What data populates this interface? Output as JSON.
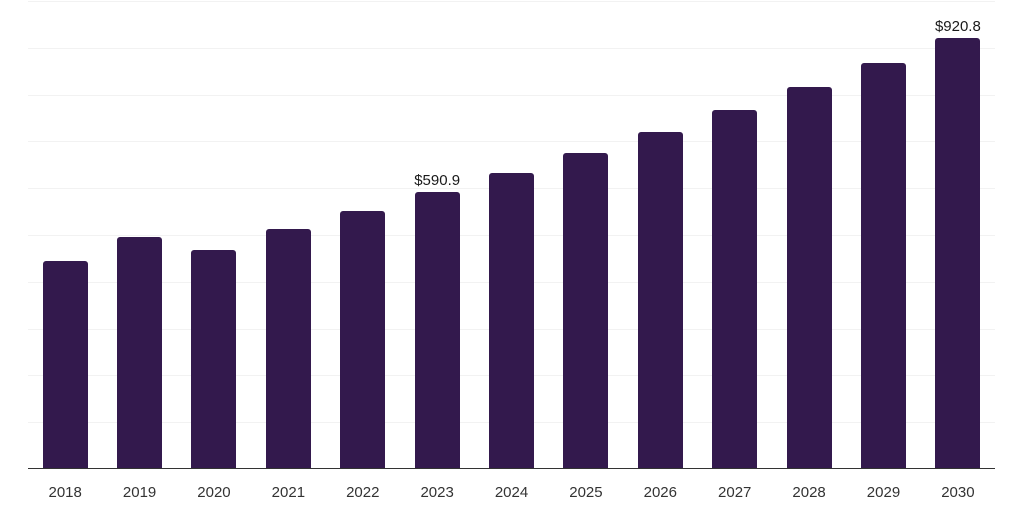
{
  "chart_data": {
    "type": "bar",
    "categories": [
      "2018",
      "2019",
      "2020",
      "2021",
      "2022",
      "2023",
      "2024",
      "2025",
      "2026",
      "2027",
      "2028",
      "2029",
      "2030"
    ],
    "values": [
      444,
      496,
      468,
      513,
      551,
      590.9,
      632,
      675,
      720,
      767,
      816,
      868,
      920.8
    ],
    "data_labels": [
      "",
      "",
      "",
      "",
      "",
      "$590.9",
      "",
      "",
      "",
      "",
      "",
      "",
      "$920.8"
    ],
    "title": "",
    "xlabel": "",
    "ylabel": "",
    "ylim": [
      0,
      1000
    ],
    "gridline_step": 100,
    "grid": true,
    "legend": "none",
    "y_axis_labels_visible": false,
    "value_prefix": "$"
  },
  "colors": {
    "bar": "#33194D",
    "gridline": "#F2F2F2",
    "axis_line": "#333333",
    "tick_label": "#333333",
    "data_label": "#1A1A1A",
    "background": "#FFFFFF"
  }
}
